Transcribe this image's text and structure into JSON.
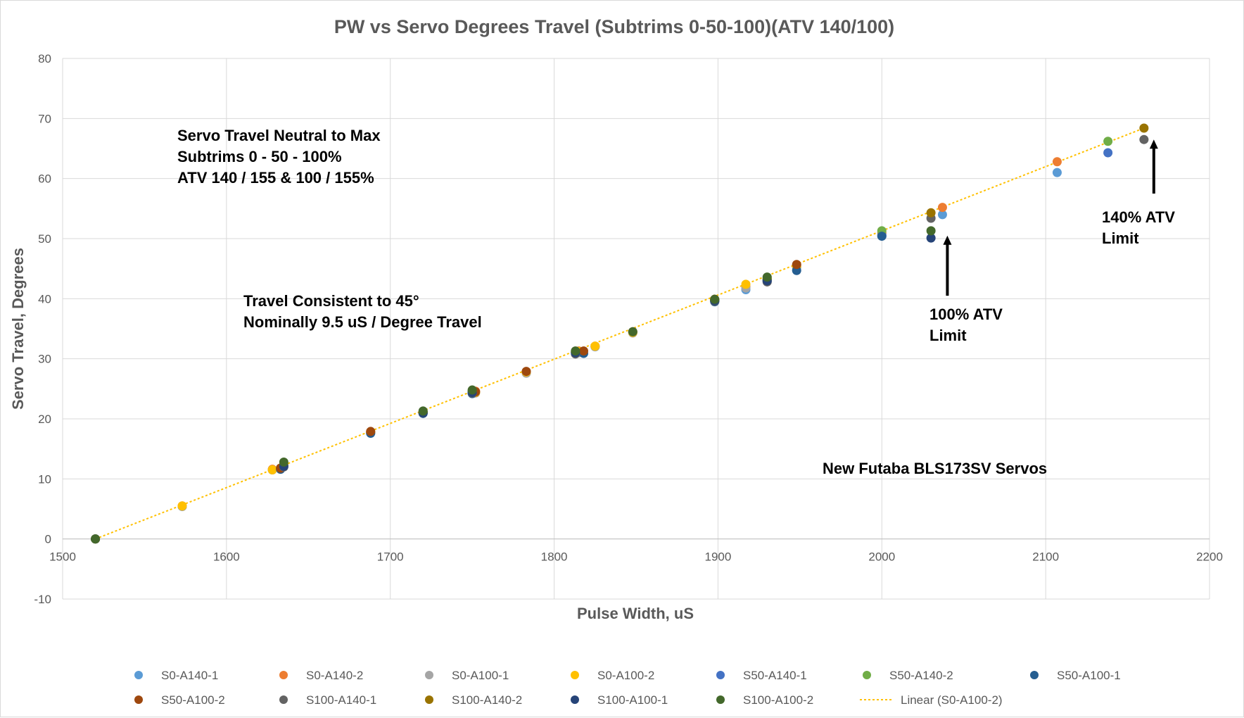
{
  "chart_data": {
    "type": "scatter",
    "title": "PW vs Servo Degrees Travel (Subtrims 0-50-100)(ATV 140/100)",
    "xlabel": "Pulse Width, uS",
    "ylabel": "Servo Travel, Degrees",
    "xlim": [
      1500,
      2200
    ],
    "ylim": [
      -10,
      80
    ],
    "x_ticks": [
      1500,
      1600,
      1700,
      1800,
      1900,
      2000,
      2100,
      2200
    ],
    "y_ticks": [
      -10,
      0,
      10,
      20,
      30,
      40,
      50,
      60,
      70,
      80
    ],
    "grid": true,
    "legend_position": "bottom",
    "series": [
      {
        "name": "S0-A140-1",
        "color": "#5b9bd5",
        "points": [
          [
            1520,
            0
          ],
          [
            1573,
            5.4
          ],
          [
            1628,
            11.5
          ],
          [
            1688,
            17.7
          ],
          [
            1720,
            21.0
          ],
          [
            1750,
            24.4
          ],
          [
            1783,
            27.7
          ],
          [
            1815,
            31.2
          ],
          [
            1825,
            32.0
          ],
          [
            1848,
            34.4
          ],
          [
            1898,
            39.7
          ],
          [
            1917,
            41.5
          ],
          [
            1930,
            43.1
          ],
          [
            1948,
            45.3
          ],
          [
            2000,
            50.8
          ],
          [
            2037,
            54.0
          ],
          [
            2107,
            61.0
          ]
        ]
      },
      {
        "name": "S0-A140-2",
        "color": "#ed7d31",
        "points": [
          [
            1520,
            0
          ],
          [
            1573,
            5.5
          ],
          [
            1628,
            11.6
          ],
          [
            1688,
            17.8
          ],
          [
            1720,
            21.1
          ],
          [
            1752,
            24.6
          ],
          [
            1783,
            27.8
          ],
          [
            1815,
            31.3
          ],
          [
            1825,
            32.1
          ],
          [
            1848,
            34.5
          ],
          [
            1898,
            39.9
          ],
          [
            1917,
            42.0
          ],
          [
            1930,
            43.4
          ],
          [
            1948,
            45.6
          ],
          [
            2000,
            51.0
          ],
          [
            2037,
            55.2
          ],
          [
            2107,
            62.8
          ]
        ]
      },
      {
        "name": "S0-A100-1",
        "color": "#a5a5a5",
        "points": [
          [
            1520,
            0
          ],
          [
            1573,
            5.4
          ],
          [
            1628,
            11.5
          ],
          [
            1688,
            17.7
          ],
          [
            1720,
            21.0
          ],
          [
            1752,
            24.3
          ],
          [
            1783,
            27.6
          ],
          [
            1815,
            31.0
          ],
          [
            1825,
            32.0
          ],
          [
            1848,
            34.3
          ],
          [
            1898,
            39.7
          ],
          [
            1917,
            41.8
          ],
          [
            1930,
            43.0
          ],
          [
            1948,
            45.2
          ]
        ]
      },
      {
        "name": "S0-A100-2",
        "color": "#ffc000",
        "points": [
          [
            1520,
            0
          ],
          [
            1573,
            5.5
          ],
          [
            1628,
            11.5
          ],
          [
            1688,
            17.8
          ],
          [
            1720,
            21.1
          ],
          [
            1752,
            24.4
          ],
          [
            1783,
            27.8
          ],
          [
            1815,
            31.2
          ],
          [
            1825,
            32.1
          ],
          [
            1848,
            34.4
          ],
          [
            1898,
            39.8
          ],
          [
            1917,
            42.4
          ],
          [
            1930,
            43.2
          ],
          [
            1948,
            45.4
          ]
        ]
      },
      {
        "name": "S50-A140-1",
        "color": "#4472c4",
        "points": [
          [
            1633,
            11.7
          ],
          [
            1720,
            21.0
          ],
          [
            1750,
            24.3
          ],
          [
            1813,
            31.0
          ],
          [
            1898,
            39.6
          ],
          [
            1930,
            42.9
          ],
          [
            2000,
            50.5
          ],
          [
            2138,
            64.3
          ]
        ]
      },
      {
        "name": "S50-A140-2",
        "color": "#70ad47",
        "points": [
          [
            1633,
            11.8
          ],
          [
            1720,
            21.1
          ],
          [
            1750,
            24.6
          ],
          [
            1813,
            31.2
          ],
          [
            1898,
            39.8
          ],
          [
            1930,
            43.3
          ],
          [
            2000,
            51.3
          ],
          [
            2138,
            66.2
          ]
        ]
      },
      {
        "name": "S50-A100-1",
        "color": "#255e91",
        "points": [
          [
            1633,
            11.6
          ],
          [
            1688,
            17.6
          ],
          [
            1720,
            20.9
          ],
          [
            1750,
            24.2
          ],
          [
            1818,
            30.9
          ],
          [
            1898,
            39.5
          ],
          [
            1948,
            44.7
          ],
          [
            2000,
            50.4
          ]
        ]
      },
      {
        "name": "S50-A100-2",
        "color": "#9e480e",
        "points": [
          [
            1633,
            11.8
          ],
          [
            1688,
            17.9
          ],
          [
            1720,
            21.1
          ],
          [
            1752,
            24.5
          ],
          [
            1783,
            27.9
          ],
          [
            1818,
            31.3
          ],
          [
            1898,
            39.9
          ],
          [
            1948,
            45.7
          ]
        ]
      },
      {
        "name": "S100-A140-1",
        "color": "#636363",
        "points": [
          [
            1520,
            0
          ],
          [
            1635,
            12.0
          ],
          [
            1720,
            21.0
          ],
          [
            1750,
            24.3
          ],
          [
            1813,
            30.8
          ],
          [
            1898,
            39.6
          ],
          [
            1930,
            42.8
          ],
          [
            2030,
            53.4
          ],
          [
            2160,
            66.5
          ]
        ]
      },
      {
        "name": "S100-A140-2",
        "color": "#997300",
        "points": [
          [
            1520,
            0
          ],
          [
            1635,
            12.3
          ],
          [
            1720,
            21.2
          ],
          [
            1750,
            24.6
          ],
          [
            1813,
            31.1
          ],
          [
            1898,
            39.8
          ],
          [
            1930,
            43.2
          ],
          [
            2030,
            54.3
          ],
          [
            2160,
            68.4
          ]
        ]
      },
      {
        "name": "S100-A100-1",
        "color": "#264478",
        "points": [
          [
            1520,
            0
          ],
          [
            1635,
            12.1
          ],
          [
            1720,
            21.0
          ],
          [
            1750,
            24.4
          ],
          [
            1813,
            31.0
          ],
          [
            1898,
            39.7
          ],
          [
            1930,
            43.0
          ],
          [
            2030,
            50.1
          ]
        ]
      },
      {
        "name": "S100-A100-2",
        "color": "#43682b",
        "points": [
          [
            1520,
            0
          ],
          [
            1635,
            12.8
          ],
          [
            1720,
            21.3
          ],
          [
            1750,
            24.8
          ],
          [
            1813,
            31.3
          ],
          [
            1848,
            34.5
          ],
          [
            1898,
            39.9
          ],
          [
            1930,
            43.6
          ],
          [
            2030,
            51.3
          ]
        ]
      },
      {
        "name": "Linear (S0-A100-2)",
        "color": "#ffc000",
        "type": "trendline",
        "points": [
          [
            1520,
            0
          ],
          [
            2160,
            68.4
          ]
        ]
      }
    ],
    "annotations": [
      {
        "lines": [
          "Servo Travel Neutral to Max",
          "Subtrims 0 - 50 - 100%",
          "ATV 140 / 155 & 100 / 155%"
        ]
      },
      {
        "lines": [
          "Travel Consistent to 45°",
          "Nominally  9.5 uS / Degree Travel"
        ]
      },
      {
        "lines": [
          "New Futaba  BLS173SV Servos"
        ]
      },
      {
        "lines": [
          "100% ATV",
          "Limit"
        ],
        "arrow_to": [
          2040,
          50.5
        ]
      },
      {
        "lines": [
          "140% ATV",
          "Limit"
        ],
        "arrow_to": [
          2166,
          66.5
        ]
      }
    ]
  }
}
